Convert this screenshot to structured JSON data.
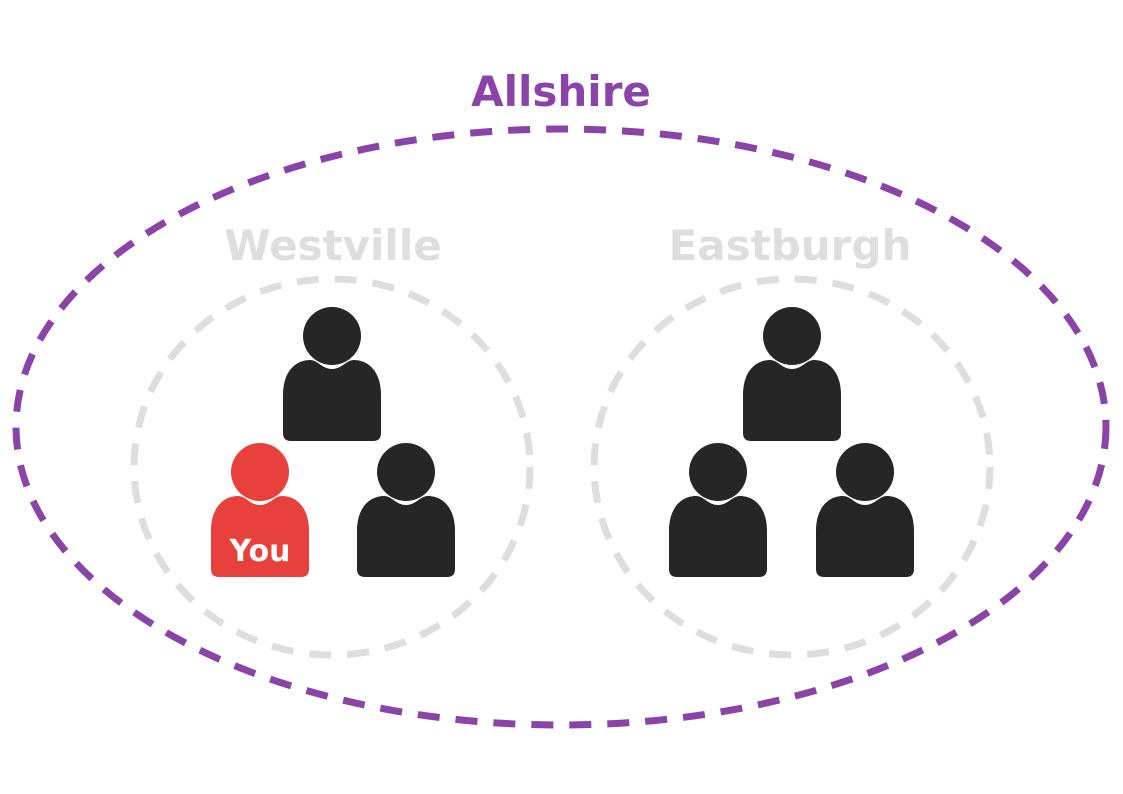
{
  "region": {
    "label": "Allshire",
    "color": "#8a44a8"
  },
  "groups": [
    {
      "label": "Westville",
      "color": "#dedede",
      "people": 3
    },
    {
      "label": "Eastburgh",
      "color": "#dedede",
      "people": 3
    }
  ],
  "you": {
    "label": "You",
    "group": "Westville",
    "color": "#e8403c"
  },
  "person_color": "#262626",
  "icons": {
    "person": "person-icon"
  }
}
